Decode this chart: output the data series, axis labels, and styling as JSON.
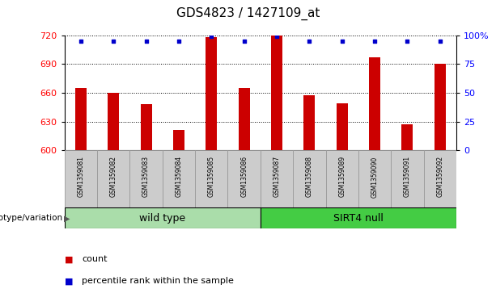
{
  "title": "GDS4823 / 1427109_at",
  "samples": [
    "GSM1359081",
    "GSM1359082",
    "GSM1359083",
    "GSM1359084",
    "GSM1359085",
    "GSM1359086",
    "GSM1359087",
    "GSM1359088",
    "GSM1359089",
    "GSM1359090",
    "GSM1359091",
    "GSM1359092"
  ],
  "counts": [
    665,
    660,
    648,
    621,
    718,
    665,
    720,
    657,
    649,
    697,
    627,
    690
  ],
  "percentile_ranks": [
    95,
    95,
    95,
    95,
    99,
    95,
    99,
    95,
    95,
    95,
    95,
    95
  ],
  "bar_color": "#cc0000",
  "dot_color": "#0000cc",
  "ylim_left": [
    600,
    720
  ],
  "ylim_right": [
    0,
    100
  ],
  "yticks_left": [
    600,
    630,
    660,
    690,
    720
  ],
  "yticks_right": [
    0,
    25,
    50,
    75,
    100
  ],
  "groups": [
    {
      "label": "wild type",
      "start": 0,
      "end": 6,
      "color": "#aaddaa"
    },
    {
      "label": "SIRT4 null",
      "start": 6,
      "end": 12,
      "color": "#44cc44"
    }
  ],
  "genotype_label": "genotype/variation",
  "legend_count_label": "count",
  "legend_pct_label": "percentile rank within the sample",
  "bar_color_legend": "#cc0000",
  "dot_color_legend": "#0000cc",
  "bar_width": 0.35,
  "label_area_color": "#cccccc",
  "cell_edge_color": "#999999"
}
